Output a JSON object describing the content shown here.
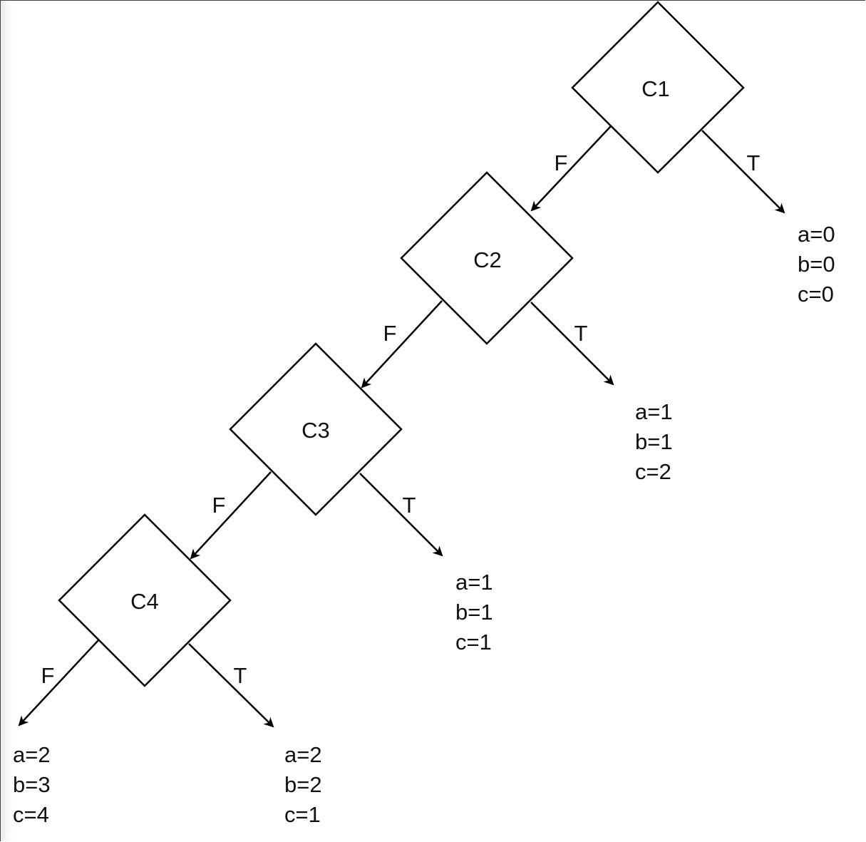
{
  "diagram": {
    "nodes": [
      {
        "id": "c1",
        "label": "C1"
      },
      {
        "id": "c2",
        "label": "C2"
      },
      {
        "id": "c3",
        "label": "C3"
      },
      {
        "id": "c4",
        "label": "C4"
      }
    ],
    "edge_labels": {
      "false": "F",
      "true": "T"
    },
    "results": [
      {
        "id": "r1",
        "from": "c1",
        "branch": "T",
        "lines": [
          "a=0",
          "b=0",
          "c=0"
        ]
      },
      {
        "id": "r2",
        "from": "c2",
        "branch": "T",
        "lines": [
          "a=1",
          "b=1",
          "c=2"
        ]
      },
      {
        "id": "r3",
        "from": "c3",
        "branch": "T",
        "lines": [
          "a=1",
          "b=1",
          "c=1"
        ]
      },
      {
        "id": "r4",
        "from": "c4",
        "branch": "F",
        "lines": [
          "a=2",
          "b=3",
          "c=4"
        ]
      },
      {
        "id": "r5",
        "from": "c4",
        "branch": "T",
        "lines": [
          "a=2",
          "b=2",
          "c=1"
        ]
      }
    ]
  }
}
